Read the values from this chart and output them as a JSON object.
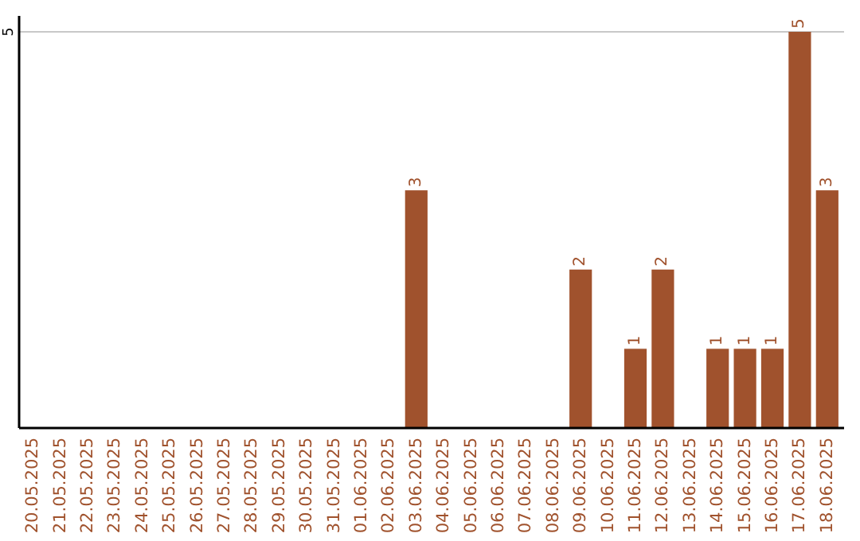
{
  "chart_data": {
    "type": "bar",
    "categories": [
      "20.05.2025",
      "21.05.2025",
      "22.05.2025",
      "23.05.2025",
      "24.05.2025",
      "25.05.2025",
      "26.05.2025",
      "27.05.2025",
      "28.05.2025",
      "29.05.2025",
      "30.05.2025",
      "31.05.2025",
      "01.06.2025",
      "02.06.2025",
      "03.06.2025",
      "04.06.2025",
      "05.06.2025",
      "06.06.2025",
      "07.06.2025",
      "08.06.2025",
      "09.06.2025",
      "10.06.2025",
      "11.06.2025",
      "12.06.2025",
      "13.06.2025",
      "14.06.2025",
      "15.06.2025",
      "16.06.2025",
      "17.06.2025",
      "18.06.2025"
    ],
    "values": [
      null,
      null,
      null,
      null,
      null,
      null,
      null,
      null,
      null,
      null,
      null,
      null,
      null,
      null,
      3,
      null,
      null,
      null,
      null,
      null,
      2,
      null,
      1,
      2,
      null,
      1,
      1,
      1,
      5,
      3
    ],
    "data_labels": true,
    "color": "#a0522d",
    "ylim": [
      0,
      5
    ],
    "yticks": [
      5
    ],
    "ref_lines": [
      {
        "axis": "y",
        "value": 5,
        "color": "#c8c8c8"
      }
    ]
  }
}
